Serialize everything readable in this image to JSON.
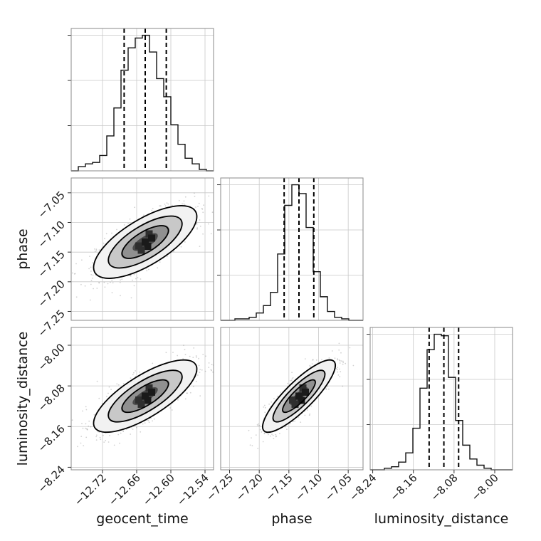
{
  "chart_data": {
    "type": "corner",
    "parameters": [
      "geocent_time",
      "phase",
      "luminosity_distance"
    ],
    "axis_labels": [
      "geocent_time",
      "phase",
      "luminosity_distance"
    ],
    "ranges": {
      "geocent_time": [
        -12.775,
        -12.525
      ],
      "phase": [
        -7.265,
        -7.025
      ],
      "luminosity_distance": [
        -8.245,
        -7.965
      ]
    },
    "ticks": {
      "geocent_time": {
        "values": [
          -12.72,
          -12.66,
          -12.6,
          -12.54
        ],
        "labels": [
          "−12.72",
          "−12.66",
          "−12.60",
          "−12.54"
        ]
      },
      "phase": {
        "values": [
          -7.25,
          -7.2,
          -7.15,
          -7.1,
          -7.05
        ],
        "labels": [
          "−7.25",
          "−7.20",
          "−7.15",
          "−7.10",
          "−7.05"
        ]
      },
      "luminosity_distance": {
        "values": [
          -8.24,
          -8.16,
          -8.08,
          -8.0
        ],
        "labels": [
          "−8.24",
          "−8.16",
          "−8.08",
          "−8.00"
        ]
      }
    },
    "means": {
      "geocent_time": -12.645,
      "phase": -7.133,
      "luminosity_distance": -8.1
    },
    "stds": {
      "geocent_time": 0.037,
      "phase": 0.025,
      "luminosity_distance": 0.029
    },
    "quantiles": {
      "geocent_time": [
        -12.682,
        -12.645,
        -12.608
      ],
      "phase": [
        -7.158,
        -7.133,
        -7.108
      ],
      "luminosity_distance": [
        -8.129,
        -8.1,
        -8.071
      ]
    },
    "histograms": {
      "geocent_time": {
        "edges_start": -12.775,
        "bin_width": 0.0125,
        "counts": [
          0,
          3,
          5,
          6,
          11,
          25,
          45,
          72,
          88,
          95,
          97,
          85,
          66,
          53,
          33,
          19,
          9,
          5,
          1,
          0
        ]
      },
      "phase": {
        "edges_start": -7.265,
        "bin_width": 0.012,
        "counts": [
          0,
          0,
          1,
          1,
          2,
          5,
          10,
          19,
          45,
          78,
          92,
          86,
          63,
          33,
          16,
          6,
          2,
          1,
          0,
          0
        ]
      },
      "luminosity_distance": {
        "edges_start": -8.245,
        "bin_width": 0.014,
        "counts": [
          0,
          0,
          1,
          2,
          5,
          11,
          27,
          53,
          78,
          88,
          87,
          60,
          32,
          16,
          7,
          3,
          1,
          0,
          0,
          0
        ]
      }
    },
    "correlations": {
      "phase|geocent_time": 0.7,
      "luminosity_distance|geocent_time": 0.75,
      "luminosity_distance|phase": 0.85
    },
    "grid": true
  }
}
